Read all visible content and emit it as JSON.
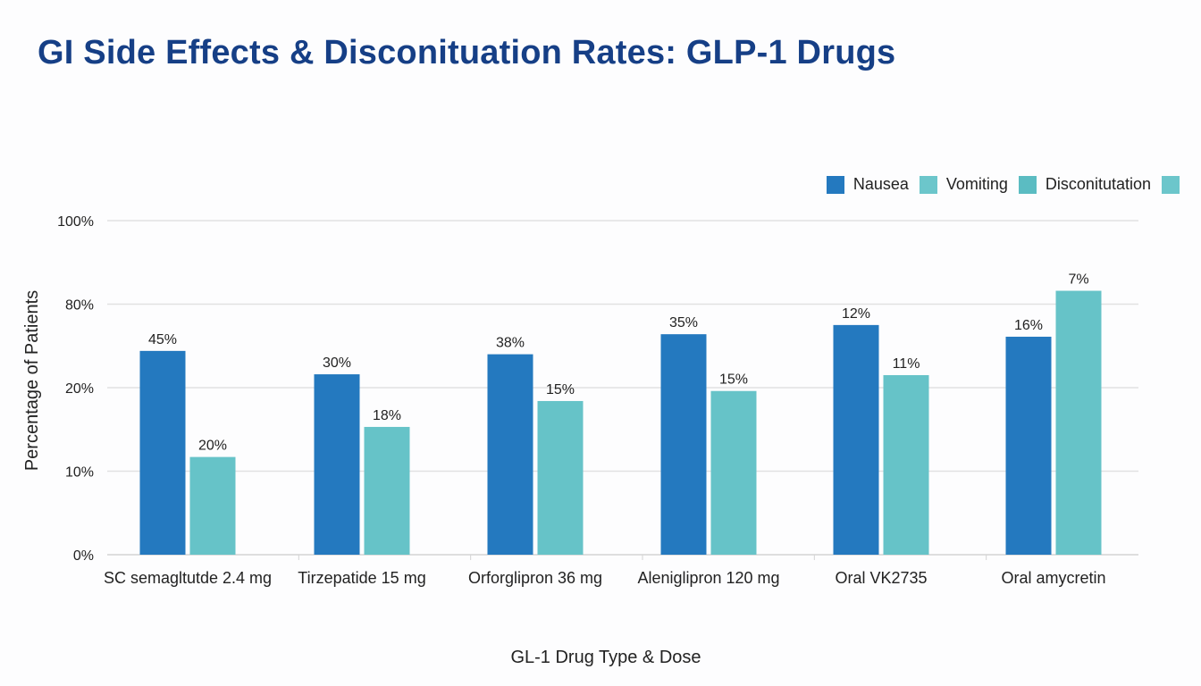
{
  "chart_data": {
    "type": "bar",
    "title": "GI Side Effects & Disconituation Rates: GLP-1 Drugs",
    "xlabel": "GL-1 Drug Type & Dose",
    "ylabel": "Percentage of Patients",
    "y_ticks": [
      "0%",
      "10%",
      "20%",
      "80%",
      "100%"
    ],
    "y_scale_note": "ticks evenly spaced (categorical-like); bar levels expressed in tick-index units 0-4",
    "grid": true,
    "legend_position": "top-right",
    "legend": [
      {
        "name": "Nausea",
        "color": "#2479bf"
      },
      {
        "name": "Vomiting",
        "color": "#66c3c8"
      },
      {
        "name": "Disconitutation",
        "color": "#5bbcc2"
      },
      {
        "name": "",
        "color": "#66c3c8"
      }
    ],
    "categories": [
      "SC semagltutde 2.4 mg",
      "Tirzepatide 15 mg",
      "Orforglipron 36 mg",
      "Aleniglipron 120 mg",
      "Oral VK2735",
      "Oral amycretin"
    ],
    "series": [
      {
        "name": "Nausea",
        "color": "#2479bf",
        "labels": [
          "45%",
          "30%",
          "38%",
          "35%",
          "12%",
          "16%"
        ],
        "values": [
          45,
          30,
          38,
          35,
          12,
          16
        ],
        "level_tick_units": [
          2.44,
          2.16,
          2.4,
          2.64,
          2.75,
          2.61
        ]
      },
      {
        "name": "Vomiting",
        "color": "#66c3c8",
        "labels": [
          "20%",
          "18%",
          "15%",
          "15%",
          "11%",
          "7%"
        ],
        "values": [
          20,
          18,
          15,
          15,
          11,
          7
        ],
        "level_tick_units": [
          1.17,
          1.53,
          1.84,
          1.96,
          2.15,
          3.16
        ]
      }
    ]
  }
}
